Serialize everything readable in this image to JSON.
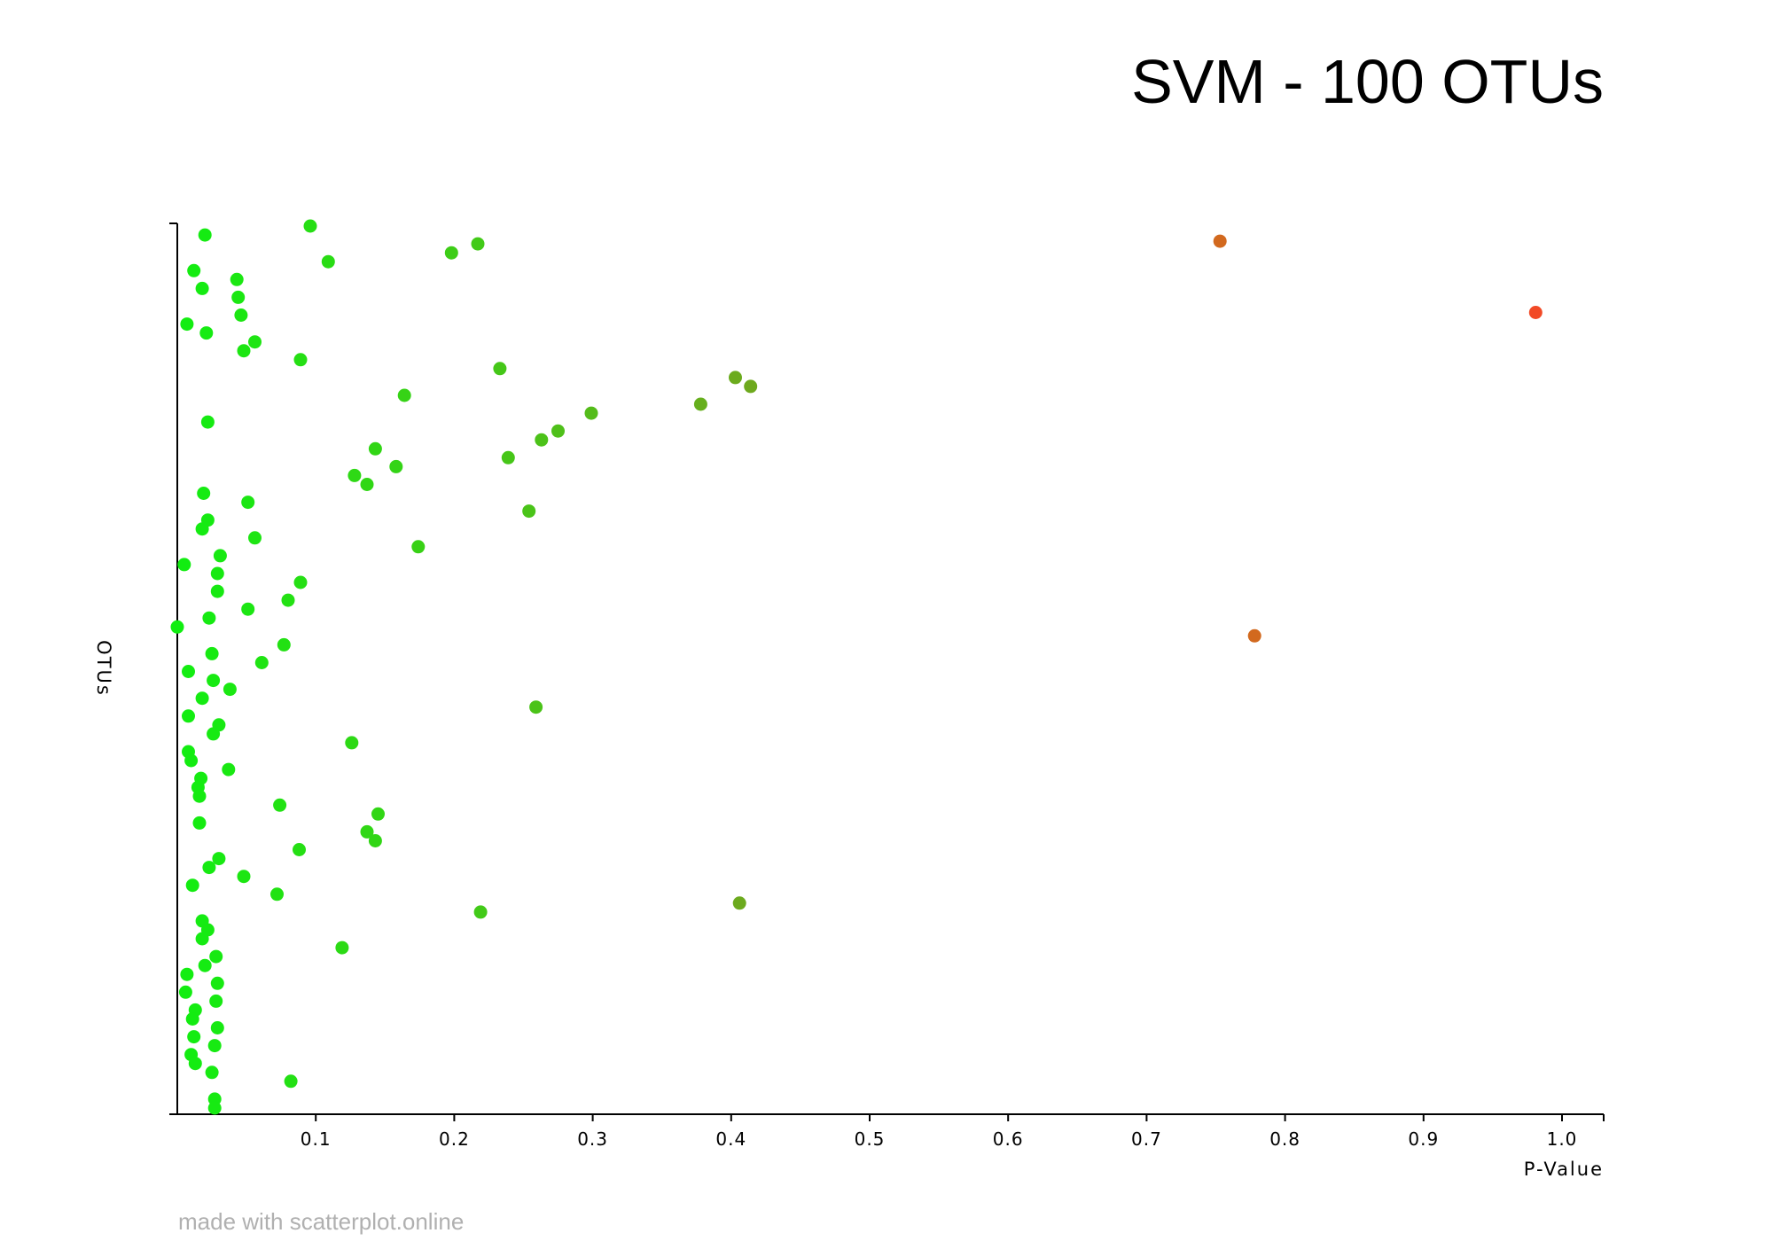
{
  "chart_data": {
    "type": "scatter",
    "title": "SVM - 100 OTUs",
    "xlabel": "P-Value",
    "ylabel": "OTUs",
    "xlim": [
      0,
      1.03
    ],
    "ylim": [
      0,
      100
    ],
    "xticks": [
      "0.1",
      "0.2",
      "0.3",
      "0.4",
      "0.5",
      "0.6",
      "0.7",
      "0.8",
      "0.9",
      "1.0"
    ],
    "grid": false,
    "legend": "none",
    "colors": {
      "low": "#11ee11",
      "mid": "#6fa81e",
      "high_orange": "#d2691e",
      "high_red": "#f24a26"
    },
    "points": [
      {
        "x": 0.096,
        "y": 99.7
      },
      {
        "x": 0.02,
        "y": 98.7
      },
      {
        "x": 0.753,
        "y": 98.0
      },
      {
        "x": 0.217,
        "y": 97.7
      },
      {
        "x": 0.198,
        "y": 96.7
      },
      {
        "x": 0.109,
        "y": 95.7
      },
      {
        "x": 0.012,
        "y": 94.7
      },
      {
        "x": 0.043,
        "y": 93.7
      },
      {
        "x": 0.018,
        "y": 92.7
      },
      {
        "x": 0.044,
        "y": 91.7
      },
      {
        "x": 0.981,
        "y": 90.0
      },
      {
        "x": 0.046,
        "y": 89.7
      },
      {
        "x": 0.007,
        "y": 88.7
      },
      {
        "x": 0.021,
        "y": 87.7
      },
      {
        "x": 0.056,
        "y": 86.7
      },
      {
        "x": 0.048,
        "y": 85.7
      },
      {
        "x": 0.089,
        "y": 84.7
      },
      {
        "x": 0.233,
        "y": 83.7
      },
      {
        "x": 0.403,
        "y": 82.7
      },
      {
        "x": 0.414,
        "y": 81.7
      },
      {
        "x": 0.164,
        "y": 80.7
      },
      {
        "x": 0.378,
        "y": 79.7
      },
      {
        "x": 0.299,
        "y": 78.7
      },
      {
        "x": 0.022,
        "y": 77.7
      },
      {
        "x": 0.275,
        "y": 76.7
      },
      {
        "x": 0.263,
        "y": 75.7
      },
      {
        "x": 0.143,
        "y": 74.7
      },
      {
        "x": 0.239,
        "y": 73.7
      },
      {
        "x": 0.158,
        "y": 72.7
      },
      {
        "x": 0.128,
        "y": 71.7
      },
      {
        "x": 0.137,
        "y": 70.7
      },
      {
        "x": 0.019,
        "y": 69.7
      },
      {
        "x": 0.051,
        "y": 68.7
      },
      {
        "x": 0.254,
        "y": 67.7
      },
      {
        "x": 0.022,
        "y": 66.7
      },
      {
        "x": 0.018,
        "y": 65.7
      },
      {
        "x": 0.056,
        "y": 64.7
      },
      {
        "x": 0.174,
        "y": 63.7
      },
      {
        "x": 0.031,
        "y": 62.7
      },
      {
        "x": 0.005,
        "y": 61.7
      },
      {
        "x": 0.029,
        "y": 60.7
      },
      {
        "x": 0.089,
        "y": 59.7
      },
      {
        "x": 0.029,
        "y": 58.7
      },
      {
        "x": 0.08,
        "y": 57.7
      },
      {
        "x": 0.051,
        "y": 56.7
      },
      {
        "x": 0.023,
        "y": 55.7
      },
      {
        "x": 0.0,
        "y": 54.7
      },
      {
        "x": 0.778,
        "y": 53.7
      },
      {
        "x": 0.077,
        "y": 52.7
      },
      {
        "x": 0.025,
        "y": 51.7
      },
      {
        "x": 0.061,
        "y": 50.7
      },
      {
        "x": 0.008,
        "y": 49.7
      },
      {
        "x": 0.026,
        "y": 48.7
      },
      {
        "x": 0.038,
        "y": 47.7
      },
      {
        "x": 0.018,
        "y": 46.7
      },
      {
        "x": 0.259,
        "y": 45.7
      },
      {
        "x": 0.008,
        "y": 44.7
      },
      {
        "x": 0.03,
        "y": 43.7
      },
      {
        "x": 0.026,
        "y": 42.7
      },
      {
        "x": 0.126,
        "y": 41.7
      },
      {
        "x": 0.008,
        "y": 40.7
      },
      {
        "x": 0.01,
        "y": 39.7
      },
      {
        "x": 0.037,
        "y": 38.7
      },
      {
        "x": 0.017,
        "y": 37.7
      },
      {
        "x": 0.015,
        "y": 36.7
      },
      {
        "x": 0.016,
        "y": 35.7
      },
      {
        "x": 0.074,
        "y": 34.7
      },
      {
        "x": 0.145,
        "y": 33.7
      },
      {
        "x": 0.016,
        "y": 32.7
      },
      {
        "x": 0.137,
        "y": 31.7
      },
      {
        "x": 0.143,
        "y": 30.7
      },
      {
        "x": 0.088,
        "y": 29.7
      },
      {
        "x": 0.03,
        "y": 28.7
      },
      {
        "x": 0.023,
        "y": 27.7
      },
      {
        "x": 0.048,
        "y": 26.7
      },
      {
        "x": 0.011,
        "y": 25.7
      },
      {
        "x": 0.072,
        "y": 24.7
      },
      {
        "x": 0.406,
        "y": 23.7
      },
      {
        "x": 0.219,
        "y": 22.7
      },
      {
        "x": 0.018,
        "y": 21.7
      },
      {
        "x": 0.022,
        "y": 20.7
      },
      {
        "x": 0.018,
        "y": 19.7
      },
      {
        "x": 0.119,
        "y": 18.7
      },
      {
        "x": 0.028,
        "y": 17.7
      },
      {
        "x": 0.02,
        "y": 16.7
      },
      {
        "x": 0.007,
        "y": 15.7
      },
      {
        "x": 0.029,
        "y": 14.7
      },
      {
        "x": 0.006,
        "y": 13.7
      },
      {
        "x": 0.028,
        "y": 12.7
      },
      {
        "x": 0.013,
        "y": 11.7
      },
      {
        "x": 0.011,
        "y": 10.7
      },
      {
        "x": 0.029,
        "y": 9.7
      },
      {
        "x": 0.012,
        "y": 8.7
      },
      {
        "x": 0.027,
        "y": 7.7
      },
      {
        "x": 0.01,
        "y": 6.7
      },
      {
        "x": 0.013,
        "y": 5.7
      },
      {
        "x": 0.025,
        "y": 4.7
      },
      {
        "x": 0.082,
        "y": 3.7
      },
      {
        "x": 0.027,
        "y": 1.7
      },
      {
        "x": 0.027,
        "y": 0.7
      }
    ]
  },
  "credit": "made with scatterplot.online"
}
